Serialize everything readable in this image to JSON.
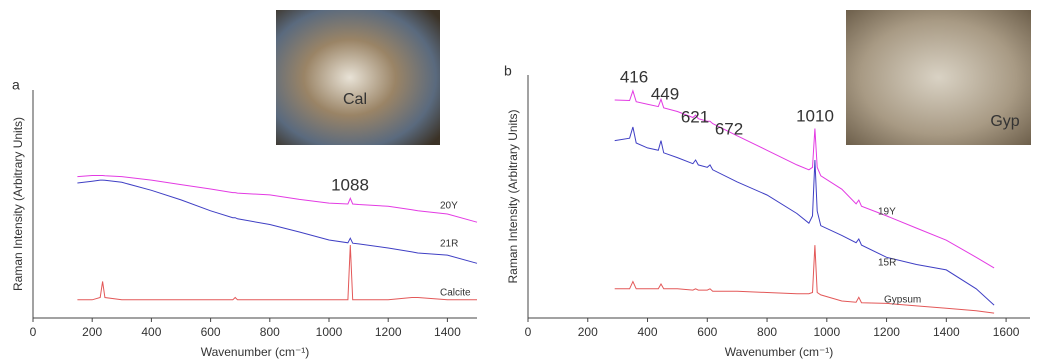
{
  "chart_data": [
    {
      "type": "line",
      "panel_label": "a",
      "photo_label": "Cal",
      "x_label": "Wavenumber (cm⁻¹)",
      "y_label": "Raman Intensity (Arbitrary Units)",
      "xlim": [
        0,
        1500
      ],
      "xticks": [
        0,
        200,
        400,
        600,
        800,
        1000,
        1200,
        1400
      ],
      "ylim": [
        0,
        100
      ],
      "annotations": [
        "1088"
      ],
      "x": [
        150,
        200,
        227,
        235,
        243,
        300,
        400,
        500,
        600,
        675,
        683,
        691,
        800,
        900,
        1000,
        1064,
        1072,
        1080,
        1100,
        1200,
        1280,
        1300,
        1400,
        1500
      ],
      "series": [
        {
          "name": "20Y",
          "color": "#e33be3",
          "values": [
            62,
            62.5,
            62.5,
            62.5,
            62.4,
            62,
            60.5,
            58.5,
            56.6,
            55,
            55,
            54.8,
            54,
            52,
            50.4,
            50,
            52.5,
            50,
            49.8,
            49,
            47.5,
            47,
            45.6,
            42
          ]
        },
        {
          "name": "21R",
          "color": "#3f3fc4",
          "values": [
            59.2,
            60,
            60.5,
            60.5,
            60.4,
            59.5,
            56,
            51.8,
            47,
            44,
            44,
            43.5,
            41,
            37.7,
            34.2,
            33,
            35,
            32.8,
            32.5,
            30.7,
            29,
            28.5,
            27.6,
            24
          ]
        },
        {
          "name": "Calcite",
          "color": "#e35858",
          "values": [
            8,
            8,
            9,
            16,
            9,
            8,
            8,
            8,
            8,
            8,
            9,
            8,
            8,
            8,
            8,
            8,
            32,
            8,
            8,
            8,
            9,
            9,
            8,
            8
          ]
        }
      ]
    },
    {
      "type": "line",
      "panel_label": "b",
      "photo_label": "Gyp",
      "x_label": "Wavenumber (cm⁻¹)",
      "y_label": "Raman Intensity (Arbitrary Units)",
      "xlim": [
        0,
        1680
      ],
      "xticks": [
        0,
        200,
        400,
        600,
        800,
        1000,
        1200,
        1400,
        1600
      ],
      "ylim": [
        0,
        100
      ],
      "annotations": [
        "416",
        "449",
        "621",
        "672",
        "1010"
      ],
      "x": [
        290,
        340,
        351,
        362,
        400,
        436,
        445,
        454,
        500,
        552,
        561,
        570,
        600,
        609,
        618,
        700,
        800,
        900,
        940,
        952,
        960,
        968,
        980,
        1050,
        1098,
        1107,
        1116,
        1200,
        1300,
        1400,
        1500,
        1560
      ],
      "series": [
        {
          "name": "19Y",
          "color": "#e33be3",
          "values": [
            89.7,
            89.5,
            93.5,
            89,
            88,
            87,
            90,
            86.5,
            85,
            82.5,
            83.5,
            82,
            81,
            81,
            80,
            75,
            69,
            63,
            61,
            62,
            78,
            62,
            58.5,
            53,
            47,
            48.5,
            46,
            42,
            37,
            32,
            25,
            20.6
          ]
        },
        {
          "name": "15R",
          "color": "#3f3fc4",
          "values": [
            73,
            74,
            78.6,
            72,
            70,
            69,
            73,
            68,
            66,
            63.5,
            65,
            63,
            62,
            63,
            61,
            56,
            50.6,
            43,
            39,
            42,
            65,
            44,
            38,
            34,
            31,
            32.5,
            30,
            25,
            22,
            19.8,
            12,
            5.3
          ]
        },
        {
          "name": "Gypsum",
          "color": "#e35858",
          "values": [
            12,
            12,
            15,
            12,
            12,
            12,
            14,
            12,
            12,
            11.5,
            12,
            11.5,
            11.5,
            12,
            11,
            11,
            10.5,
            10,
            10,
            10.5,
            30,
            10.5,
            9.5,
            7,
            6.5,
            8.5,
            6.3,
            6,
            5,
            4,
            3,
            2
          ]
        }
      ]
    }
  ]
}
